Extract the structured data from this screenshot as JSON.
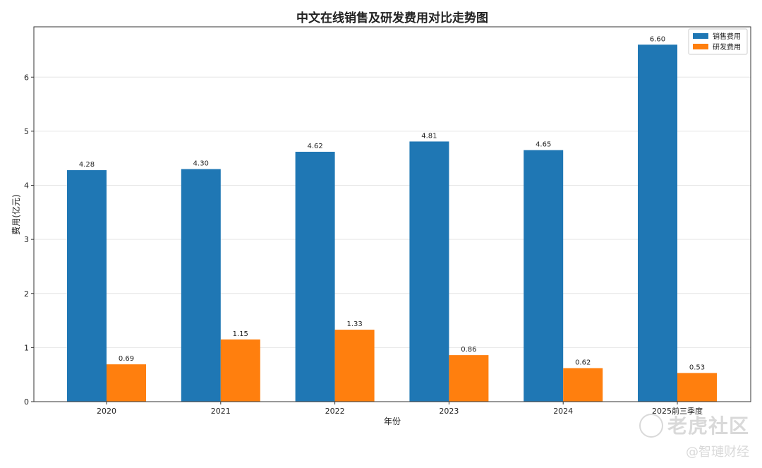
{
  "chart_data": {
    "type": "bar",
    "title": "中文在线销售及研发费用对比走势图",
    "xlabel": "年份",
    "ylabel": "费用(亿元)",
    "categories": [
      "2020",
      "2021",
      "2022",
      "2023",
      "2024",
      "2025前三季度"
    ],
    "series": [
      {
        "name": "销售费用",
        "color": "#1f77b4",
        "values": [
          4.28,
          4.3,
          4.62,
          4.81,
          4.65,
          6.6
        ]
      },
      {
        "name": "研发费用",
        "color": "#ff7f0e",
        "values": [
          0.69,
          1.15,
          1.33,
          0.86,
          0.62,
          0.53
        ]
      }
    ],
    "yticks": [
      0,
      1,
      2,
      3,
      4,
      5,
      6
    ],
    "ylim": [
      0,
      6.93
    ],
    "grid": "horizontal",
    "legend_position": "top-right"
  },
  "watermark": {
    "main": "老虎社区",
    "sub": "@智璉财经"
  }
}
